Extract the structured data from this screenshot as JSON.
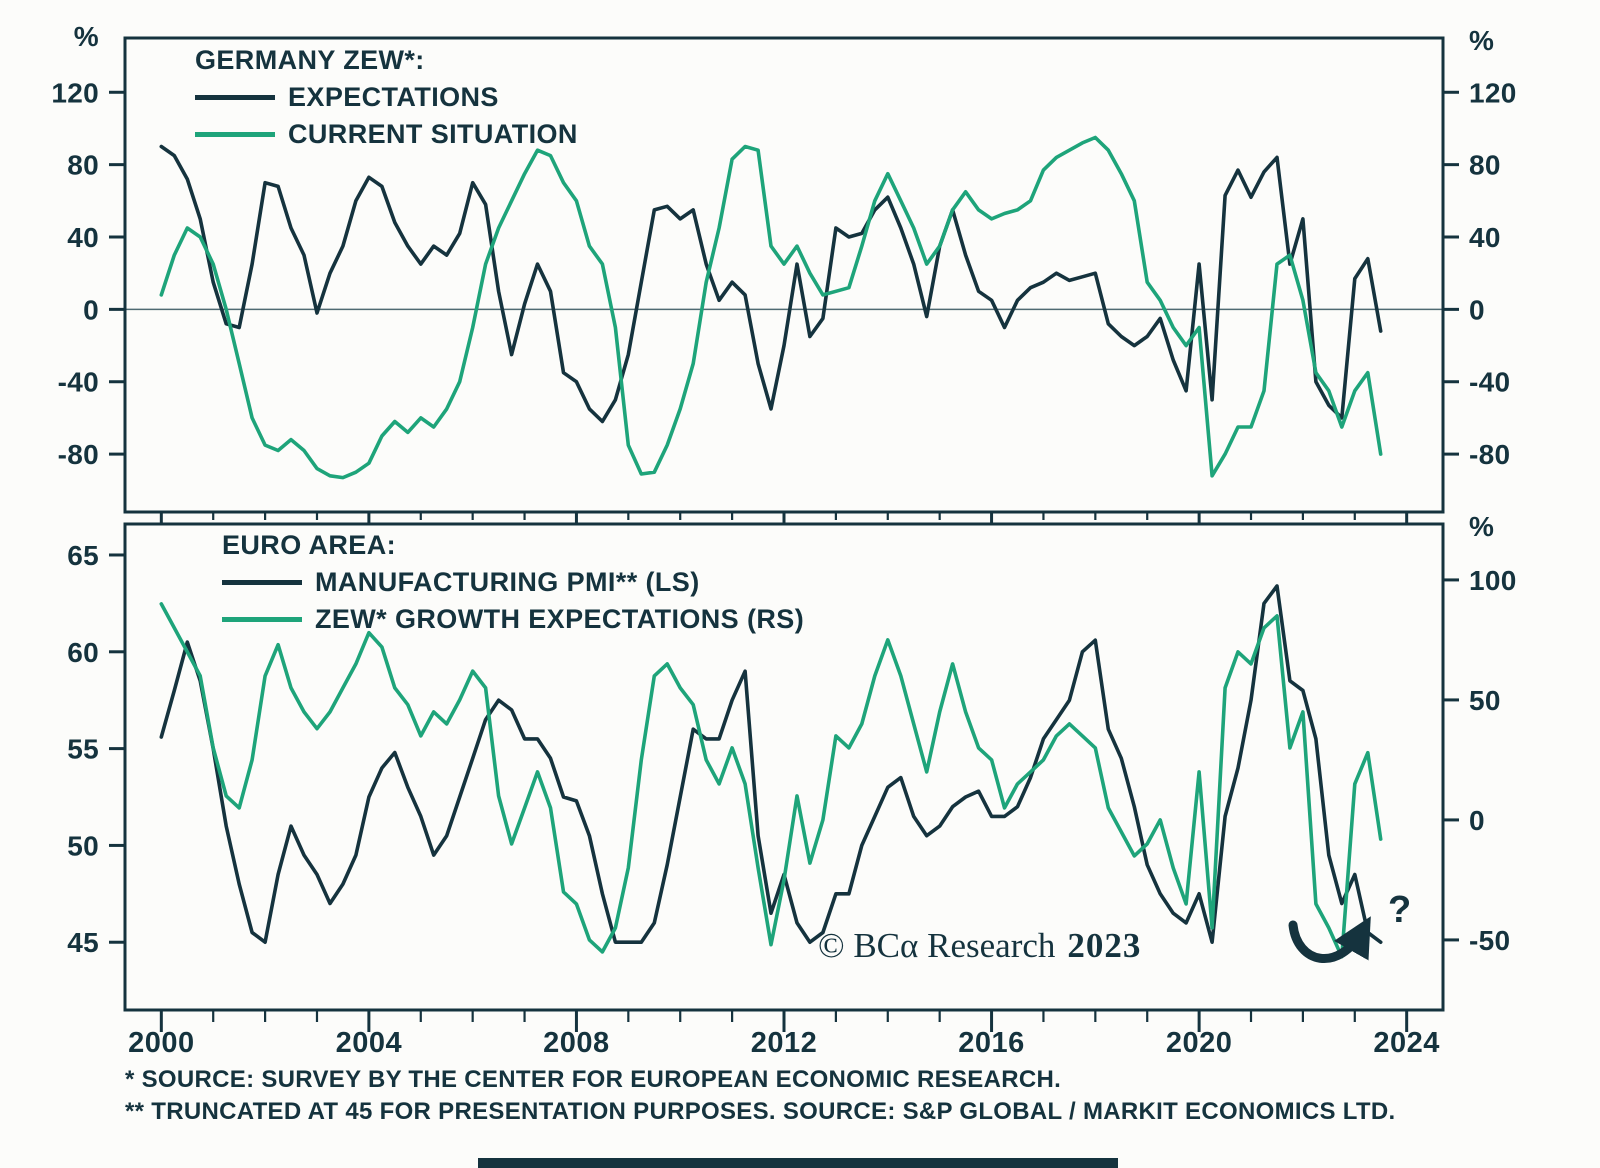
{
  "colors": {
    "dark": "#15333e",
    "green": "#1ea47a",
    "frame": "#15333e",
    "zero_line": "#4f6a72",
    "background": "#fcfcfa"
  },
  "chart_data": [
    {
      "type": "line",
      "title": "GERMANY ZEW*:",
      "xlabel": "",
      "ylabel": "%",
      "y_unit_left": "%",
      "y_unit_right": "%",
      "ylim": [
        -112,
        150
      ],
      "yticks": [
        120,
        80,
        40,
        0,
        -40,
        -80
      ],
      "right_same_scale": true,
      "zero_line": true,
      "xlim": [
        1999.3,
        2024.7
      ],
      "xticks_major": [
        2000,
        2004,
        2008,
        2012,
        2016,
        2020,
        2024
      ],
      "xticks_minor_step": 1,
      "legend_position": "top-left",
      "grid": false,
      "x": [
        2000,
        2000.25,
        2000.5,
        2000.75,
        2001,
        2001.25,
        2001.5,
        2001.75,
        2002,
        2002.25,
        2002.5,
        2002.75,
        2003,
        2003.25,
        2003.5,
        2003.75,
        2004,
        2004.25,
        2004.5,
        2004.75,
        2005,
        2005.25,
        2005.5,
        2005.75,
        2006,
        2006.25,
        2006.5,
        2006.75,
        2007,
        2007.25,
        2007.5,
        2007.75,
        2008,
        2008.25,
        2008.5,
        2008.75,
        2009,
        2009.25,
        2009.5,
        2009.75,
        2010,
        2010.25,
        2010.5,
        2010.75,
        2011,
        2011.25,
        2011.5,
        2011.75,
        2012,
        2012.25,
        2012.5,
        2012.75,
        2013,
        2013.25,
        2013.5,
        2013.75,
        2014,
        2014.25,
        2014.5,
        2014.75,
        2015,
        2015.25,
        2015.5,
        2015.75,
        2016,
        2016.25,
        2016.5,
        2016.75,
        2017,
        2017.25,
        2017.5,
        2017.75,
        2018,
        2018.25,
        2018.5,
        2018.75,
        2019,
        2019.25,
        2019.5,
        2019.75,
        2020,
        2020.25,
        2020.5,
        2020.75,
        2021,
        2021.25,
        2021.5,
        2021.75,
        2022,
        2022.25,
        2022.5,
        2022.75,
        2023,
        2023.25,
        2023.5
      ],
      "series": [
        {
          "name": "EXPECTATIONS",
          "axis": "left",
          "color_key": "dark",
          "values": [
            90,
            85,
            72,
            50,
            15,
            -8,
            -10,
            25,
            70,
            68,
            45,
            30,
            -2,
            20,
            35,
            60,
            73,
            68,
            48,
            35,
            25,
            35,
            30,
            42,
            70,
            58,
            10,
            -25,
            3,
            25,
            10,
            -35,
            -40,
            -55,
            -62,
            -50,
            -25,
            15,
            55,
            57,
            50,
            55,
            25,
            5,
            15,
            8,
            -30,
            -55,
            -20,
            25,
            -15,
            -5,
            45,
            40,
            42,
            55,
            62,
            45,
            25,
            -4,
            35,
            55,
            30,
            10,
            5,
            -10,
            5,
            12,
            15,
            20,
            16,
            18,
            20,
            -8,
            -15,
            -20,
            -15,
            -5,
            -28,
            -45,
            25,
            -50,
            63,
            77,
            62,
            76,
            84,
            25,
            50,
            -40,
            -53,
            -60,
            17,
            28,
            -12
          ]
        },
        {
          "name": "CURRENT SITUATION",
          "axis": "left",
          "color_key": "green",
          "values": [
            8,
            30,
            45,
            40,
            25,
            0,
            -30,
            -60,
            -75,
            -78,
            -72,
            -78,
            -88,
            -92,
            -93,
            -90,
            -85,
            -70,
            -62,
            -68,
            -60,
            -65,
            -55,
            -40,
            -10,
            25,
            45,
            60,
            75,
            88,
            85,
            70,
            60,
            35,
            25,
            -10,
            -75,
            -91,
            -90,
            -75,
            -55,
            -30,
            15,
            45,
            83,
            90,
            88,
            35,
            25,
            35,
            20,
            8,
            10,
            12,
            35,
            60,
            75,
            60,
            45,
            25,
            35,
            55,
            65,
            55,
            50,
            53,
            55,
            60,
            77,
            84,
            88,
            92,
            95,
            88,
            75,
            60,
            15,
            5,
            -10,
            -20,
            -10,
            -92,
            -80,
            -65,
            -65,
            -45,
            25,
            30,
            5,
            -35,
            -45,
            -65,
            -45,
            -35,
            -80
          ]
        }
      ]
    },
    {
      "type": "line",
      "title": "EURO AREA:",
      "xlabel": "",
      "ylabel": "",
      "y_unit_right": "%",
      "ylim": [
        41.5,
        66.6
      ],
      "yticks": [
        65,
        60,
        55,
        50,
        45
      ],
      "right_ylim": [
        -79.2,
        123.3
      ],
      "right_yticks": [
        100,
        50,
        0,
        -50
      ],
      "zero_line": false,
      "xlim": [
        1999.3,
        2024.7
      ],
      "xticks_major": [
        2000,
        2004,
        2008,
        2012,
        2016,
        2020,
        2024
      ],
      "xticks_minor_step": 1,
      "legend_position": "top-left",
      "grid": false,
      "x": [
        2000,
        2000.25,
        2000.5,
        2000.75,
        2001,
        2001.25,
        2001.5,
        2001.75,
        2002,
        2002.25,
        2002.5,
        2002.75,
        2003,
        2003.25,
        2003.5,
        2003.75,
        2004,
        2004.25,
        2004.5,
        2004.75,
        2005,
        2005.25,
        2005.5,
        2005.75,
        2006,
        2006.25,
        2006.5,
        2006.75,
        2007,
        2007.25,
        2007.5,
        2007.75,
        2008,
        2008.25,
        2008.5,
        2008.75,
        2009,
        2009.25,
        2009.5,
        2009.75,
        2010,
        2010.25,
        2010.5,
        2010.75,
        2011,
        2011.25,
        2011.5,
        2011.75,
        2012,
        2012.25,
        2012.5,
        2012.75,
        2013,
        2013.25,
        2013.5,
        2013.75,
        2014,
        2014.25,
        2014.5,
        2014.75,
        2015,
        2015.25,
        2015.5,
        2015.75,
        2016,
        2016.25,
        2016.5,
        2016.75,
        2017,
        2017.25,
        2017.5,
        2017.75,
        2018,
        2018.25,
        2018.5,
        2018.75,
        2019,
        2019.25,
        2019.5,
        2019.75,
        2020,
        2020.25,
        2020.5,
        2020.75,
        2021,
        2021.25,
        2021.5,
        2021.75,
        2022,
        2022.25,
        2022.5,
        2022.75,
        2023,
        2023.25,
        2023.5
      ],
      "series": [
        {
          "name": "MANUFACTURING PMI** (LS)",
          "axis": "left",
          "color_key": "dark",
          "values": [
            55.6,
            58,
            60.5,
            58.5,
            55,
            51,
            48,
            45.5,
            45,
            48.5,
            51,
            49.5,
            48.5,
            47,
            48,
            49.5,
            52.5,
            54,
            54.8,
            53,
            51.5,
            49.5,
            50.5,
            52.5,
            54.5,
            56.5,
            57.5,
            57,
            55.5,
            55.5,
            54.5,
            52.5,
            52.3,
            50.5,
            47.5,
            45,
            45,
            45,
            46,
            49,
            52.5,
            56,
            55.5,
            55.5,
            57.5,
            59,
            50.5,
            46.5,
            48.5,
            46,
            45,
            45.5,
            47.5,
            47.5,
            50,
            51.5,
            53,
            53.5,
            51.5,
            50.5,
            51,
            52,
            52.5,
            52.8,
            51.5,
            51.5,
            52,
            53.5,
            55.5,
            56.5,
            57.5,
            60,
            60.6,
            56,
            54.5,
            52,
            49,
            47.5,
            46.5,
            46,
            47.5,
            45,
            51.5,
            54,
            57.5,
            62.5,
            63.4,
            58.5,
            58,
            55.5,
            49.5,
            47,
            48.5,
            45.5,
            45
          ]
        },
        {
          "name": "ZEW* GROWTH EXPECTATIONS (RS)",
          "axis": "right",
          "color_key": "green",
          "values": [
            90,
            80,
            70,
            60,
            30,
            10,
            5,
            25,
            60,
            73,
            55,
            45,
            38,
            45,
            55,
            65,
            78,
            72,
            55,
            48,
            35,
            45,
            40,
            50,
            62,
            55,
            10,
            -10,
            5,
            20,
            5,
            -30,
            -35,
            -50,
            -55,
            -45,
            -20,
            25,
            60,
            65,
            55,
            48,
            25,
            15,
            30,
            15,
            -20,
            -52,
            -25,
            10,
            -18,
            0,
            35,
            30,
            40,
            60,
            75,
            60,
            40,
            20,
            45,
            65,
            45,
            30,
            25,
            5,
            15,
            20,
            25,
            35,
            40,
            35,
            30,
            5,
            -5,
            -15,
            -10,
            0,
            -20,
            -35,
            20,
            -45,
            55,
            70,
            65,
            80,
            85,
            30,
            45,
            -35,
            -45,
            -57,
            15,
            28,
            -8
          ]
        }
      ]
    }
  ],
  "annotations": {
    "watermark_text": "© BCα Research",
    "watermark_year": "2023",
    "question_mark": "?"
  },
  "footnotes": [
    "* SOURCE: SURVEY BY THE CENTER FOR EUROPEAN ECONOMIC RESEARCH.",
    "** TRUNCATED AT 45 FOR PRESENTATION PURPOSES. SOURCE: S&P GLOBAL / MARKIT ECONOMICS LTD."
  ]
}
